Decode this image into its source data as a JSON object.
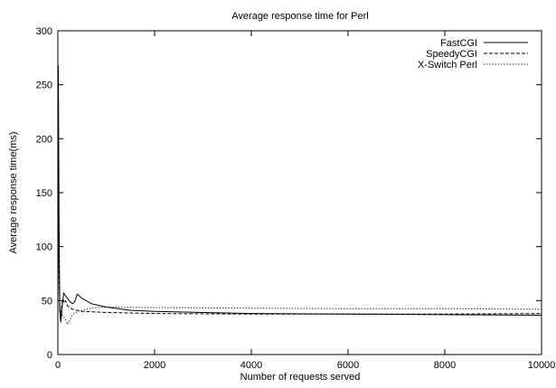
{
  "chart_data": {
    "type": "line",
    "title": "Average response time for Perl",
    "xlabel": "Number of requests served",
    "ylabel": "Average response time(ms)",
    "xlim": [
      0,
      10000
    ],
    "ylim": [
      0,
      300
    ],
    "xticks": [
      0,
      2000,
      4000,
      6000,
      8000,
      10000
    ],
    "yticks": [
      0,
      50,
      100,
      150,
      200,
      250,
      300
    ],
    "grid": false,
    "legend_position": "top-right",
    "series": [
      {
        "name": "FastCGI",
        "style": "solid",
        "x": [
          0,
          10,
          25,
          40,
          60,
          90,
          120,
          150,
          200,
          250,
          300,
          350,
          400,
          500,
          700,
          1000,
          1500,
          2000,
          3000,
          4000,
          6000,
          8000,
          10000
        ],
        "y": [
          45,
          267,
          120,
          40,
          30,
          45,
          57,
          55,
          52,
          49,
          47,
          49,
          56,
          52,
          47,
          44,
          41,
          40,
          39,
          38,
          37.5,
          37,
          36.5
        ]
      },
      {
        "name": "SpeedyCGI",
        "style": "dashed",
        "x": [
          0,
          10,
          25,
          40,
          60,
          80,
          100,
          130,
          160,
          200,
          300,
          500,
          1000,
          2000,
          4000,
          6000,
          8000,
          10000
        ],
        "y": [
          40,
          157,
          80,
          45,
          35,
          45,
          52,
          48,
          50,
          45,
          42,
          40,
          39,
          38,
          37.5,
          37.5,
          37.5,
          38
        ]
      },
      {
        "name": "X-Switch Perl",
        "style": "dotted",
        "x": [
          0,
          10,
          25,
          40,
          60,
          80,
          100,
          150,
          200,
          250,
          300,
          400,
          700,
          1000,
          2000,
          4000,
          6000,
          8000,
          10000
        ],
        "y": [
          45,
          140,
          70,
          42,
          40,
          38,
          36,
          33,
          28,
          32,
          37,
          40,
          43,
          44,
          43.5,
          43,
          42.5,
          42.5,
          42
        ]
      }
    ]
  }
}
